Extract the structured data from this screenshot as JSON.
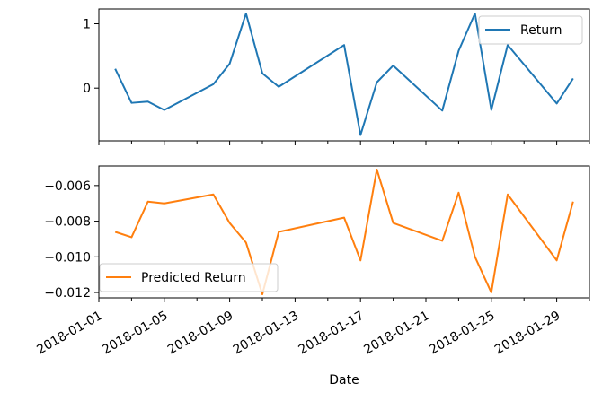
{
  "chart_data": [
    {
      "type": "line",
      "xlabel": "",
      "ylabel": "",
      "ylim": [
        -0.82,
        1.23
      ],
      "yticks": [
        1,
        0
      ],
      "ytick_labels": [
        "1",
        "0"
      ],
      "legend_position": "upper-right",
      "grid": false,
      "series": [
        {
          "name": "Return",
          "color": "#1f77b4",
          "x": [
            "2018-01-02",
            "2018-01-03",
            "2018-01-04",
            "2018-01-05",
            "2018-01-08",
            "2018-01-09",
            "2018-01-10",
            "2018-01-11",
            "2018-01-12",
            "2018-01-16",
            "2018-01-17",
            "2018-01-18",
            "2018-01-19",
            "2018-01-22",
            "2018-01-23",
            "2018-01-24",
            "2018-01-25",
            "2018-01-26",
            "2018-01-29",
            "2018-01-30"
          ],
          "values": [
            0.3,
            -0.23,
            -0.21,
            -0.34,
            0.06,
            0.38,
            1.16,
            0.23,
            0.02,
            0.67,
            -0.73,
            0.09,
            0.35,
            -0.35,
            0.58,
            1.16,
            -0.34,
            0.67,
            -0.24,
            0.15
          ]
        }
      ]
    },
    {
      "type": "line",
      "xlabel": "Date",
      "ylabel": "",
      "ylim": [
        -0.0123,
        -0.0049
      ],
      "yticks": [
        -0.006,
        -0.008,
        -0.01,
        -0.012
      ],
      "ytick_labels": [
        "−0.006",
        "−0.008",
        "−0.010",
        "−0.012"
      ],
      "xlim": [
        "2018-01-01",
        "2018-01-31"
      ],
      "xticks": [
        "2018-01-01",
        "2018-01-05",
        "2018-01-09",
        "2018-01-13",
        "2018-01-17",
        "2018-01-21",
        "2018-01-25",
        "2018-01-29"
      ],
      "xtick_labels": [
        "2018-01-01",
        "2018-01-05",
        "2018-01-09",
        "2018-01-13",
        "2018-01-17",
        "2018-01-21",
        "2018-01-25",
        "2018-01-29"
      ],
      "legend_position": "lower-left",
      "grid": false,
      "series": [
        {
          "name": "Predicted Return",
          "color": "#ff7f0e",
          "x": [
            "2018-01-02",
            "2018-01-03",
            "2018-01-04",
            "2018-01-05",
            "2018-01-08",
            "2018-01-09",
            "2018-01-10",
            "2018-01-11",
            "2018-01-12",
            "2018-01-16",
            "2018-01-17",
            "2018-01-18",
            "2018-01-19",
            "2018-01-22",
            "2018-01-23",
            "2018-01-24",
            "2018-01-25",
            "2018-01-26",
            "2018-01-29",
            "2018-01-30"
          ],
          "values": [
            -0.0086,
            -0.0089,
            -0.0069,
            -0.007,
            -0.0065,
            -0.0081,
            -0.0092,
            -0.0121,
            -0.0086,
            -0.0078,
            -0.0102,
            -0.0051,
            -0.0081,
            -0.0091,
            -0.0064,
            -0.01,
            -0.012,
            -0.0065,
            -0.0102,
            -0.0069
          ]
        }
      ]
    }
  ]
}
